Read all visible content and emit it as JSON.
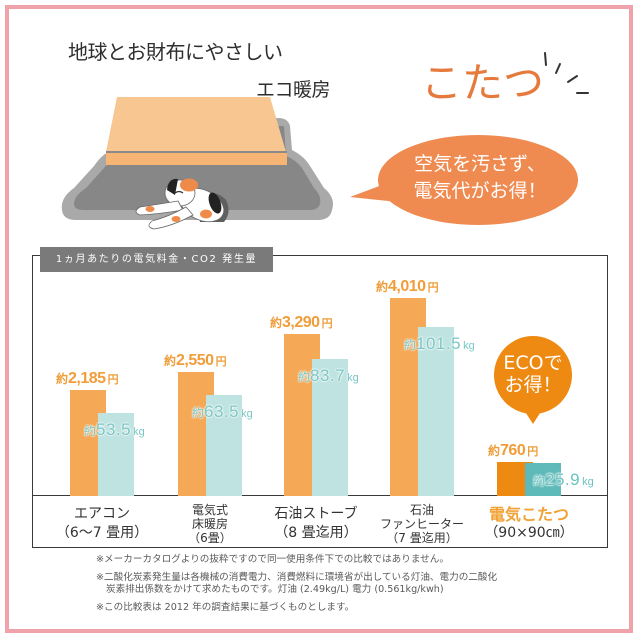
{
  "header": {
    "tagline": "地球とお財布にやさしい",
    "subtitle": "エコ暖房",
    "highlight": "こたつ"
  },
  "speech_bubble": {
    "line1": "空気を汚さず、",
    "line2": "電気代がお得！"
  },
  "chart": {
    "title": "1ヵ月あたりの電気料金・CO2 発生量",
    "approx_prefix": "約",
    "cost_unit": "円",
    "co2_unit": "kg",
    "eco_bubble": {
      "line1": "ECOで",
      "line2": "お得！"
    },
    "items": [
      {
        "label_lines": [
          "エアコン",
          "（6～7 畳用）"
        ],
        "cost": "2,185",
        "co2": "53.5"
      },
      {
        "label_lines": [
          "電気式",
          "床暖房",
          "（6畳）"
        ],
        "cost": "2,550",
        "co2": "63.5"
      },
      {
        "label_lines": [
          "石油ストーブ",
          "（8 畳迄用）"
        ],
        "cost": "3,290",
        "co2": "83.7"
      },
      {
        "label_lines": [
          "石油",
          "ファンヒーター",
          "（7 畳迄用）"
        ],
        "cost": "4,010",
        "co2": "101.5"
      },
      {
        "label_lines": [
          "電気こたつ",
          "（90×90㎝）"
        ],
        "cost": "760",
        "co2": "25.9"
      }
    ]
  },
  "chart_data": {
    "type": "bar",
    "title": "1ヵ月あたりの電気料金・CO2 発生量",
    "categories": [
      "エアコン（6～7畳用）",
      "電気式床暖房（6畳）",
      "石油ストーブ（8畳迄用）",
      "石油ファンヒーター（7畳迄用）",
      "電気こたつ（90×90㎝）"
    ],
    "series": [
      {
        "name": "電気料金（1ヵ月あたり）",
        "unit": "円",
        "color": "#f5a855",
        "values": [
          2185,
          2550,
          3290,
          4010,
          760
        ]
      },
      {
        "name": "CO2 発生量（1ヵ月あたり）",
        "unit": "kg",
        "color": "#bfe3e0",
        "values": [
          53.5,
          63.5,
          83.7,
          101.5,
          25.9
        ]
      }
    ],
    "xlabel": "",
    "ylabel": "",
    "grid": false,
    "legend": "none",
    "annotations": [
      "ECOでお得！"
    ]
  },
  "footnotes": [
    "※メーカーカタログよりの抜粋ですので同一使用条件下での比較ではありません。",
    "※二酸化炭素発生量は各機械の消費電力、消費燃料に環境省が出している灯油、電力の二酸化",
    "炭素排出係数をかけて求めたものです。灯油 (2.49kg/L) 電力 (0.561kg/kwh)",
    "※この比較表は 2012 年の調査結果に基づくものとします。"
  ],
  "colors": {
    "frame": "#f0a2aa",
    "accent_orange": "#e57a3c",
    "bar_cost": "#f5a855",
    "bar_co2": "#bfe3e0",
    "bar_cost_highlight": "#ee8a12",
    "bar_co2_highlight": "#5dbab8",
    "title_box": "#7a7a7a"
  }
}
